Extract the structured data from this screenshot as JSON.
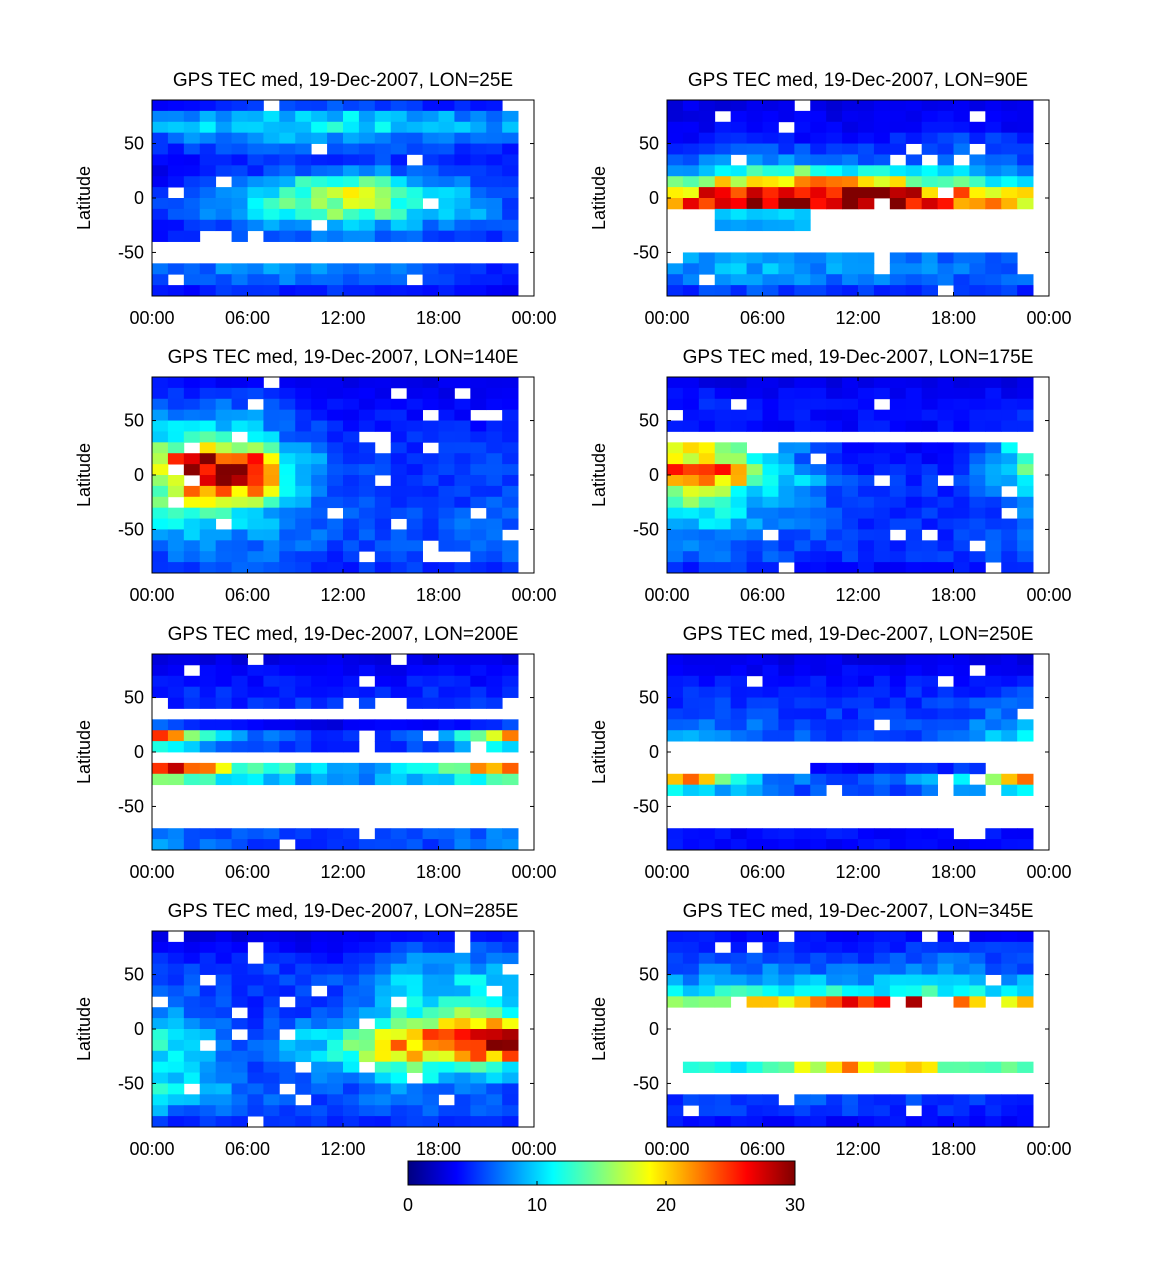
{
  "chart_data": {
    "type": "heatmap",
    "colorbar": {
      "colormap": "jet",
      "range": [
        0,
        30
      ],
      "ticks": [
        "0",
        "10",
        "20",
        "30"
      ]
    },
    "panels": [
      {
        "title": "GPS TEC med, 19-Dec-2007, LON=25E",
        "ylabel": "Latitude",
        "xticks": [
          "00:00",
          "06:00",
          "12:00",
          "18:00",
          "00:00"
        ],
        "yticks": [
          "50",
          "0",
          "-50"
        ],
        "xlim": [
          0,
          24
        ],
        "ylim": [
          -90,
          90
        ],
        "grid_rows_lat": [
          85,
          75,
          65,
          55,
          45,
          35,
          25,
          15,
          5,
          -5,
          -15,
          -25,
          -35,
          -45,
          -55,
          -65,
          -75,
          -85
        ],
        "profile_lat": [
          85,
          70,
          50,
          30,
          10,
          -10,
          -30,
          -50,
          -70,
          -85
        ],
        "profile_hours": [
          0,
          6,
          12,
          18,
          23
        ],
        "profile_values": [
          [
            3,
            5,
            6,
            5,
            4
          ],
          [
            10,
            12,
            12,
            10,
            9
          ],
          [
            5,
            7,
            7,
            6,
            5
          ],
          [
            3,
            4,
            5,
            5,
            4
          ],
          [
            4,
            9,
            18,
            9,
            5
          ],
          [
            5,
            10,
            17,
            12,
            6
          ],
          [
            4,
            6,
            7,
            6,
            5
          ],
          [
            null,
            null,
            null,
            null,
            null
          ],
          [
            6,
            8,
            8,
            6,
            4
          ],
          [
            4,
            5,
            5,
            4,
            4
          ]
        ]
      },
      {
        "title": "GPS TEC med, 19-Dec-2007, LON=90E",
        "ylabel": "Latitude",
        "xticks": [
          "00:00",
          "06:00",
          "12:00",
          "18:00",
          "00:00"
        ],
        "yticks": [
          "50",
          "0",
          "-50"
        ],
        "xlim": [
          0,
          24
        ],
        "ylim": [
          -90,
          90
        ],
        "grid_rows_lat": [
          85,
          75,
          65,
          55,
          45,
          35,
          25,
          15,
          5,
          -5,
          -15,
          -25,
          -35,
          -45,
          -55,
          -65,
          -75,
          -85
        ],
        "profile_lat": [
          85,
          70,
          50,
          30,
          15,
          5,
          -5,
          -15,
          -40,
          -70,
          -85
        ],
        "profile_hours": [
          0,
          6,
          12,
          18,
          23
        ],
        "profile_values": [
          [
            3,
            3,
            3,
            3,
            3
          ],
          [
            3,
            4,
            3,
            4,
            3
          ],
          [
            4,
            5,
            4,
            6,
            5
          ],
          [
            6,
            10,
            8,
            7,
            6
          ],
          [
            12,
            22,
            20,
            14,
            10
          ],
          [
            20,
            29,
            29,
            22,
            18
          ],
          [
            21,
            30,
            30,
            24,
            17
          ],
          [
            null,
            10,
            null,
            null,
            null
          ],
          [
            null,
            null,
            null,
            null,
            null
          ],
          [
            8,
            9,
            8,
            7,
            7
          ],
          [
            5,
            6,
            5,
            5,
            5
          ]
        ]
      },
      {
        "title": "GPS TEC med, 19-Dec-2007, LON=140E",
        "ylabel": "Latitude",
        "xticks": [
          "00:00",
          "06:00",
          "12:00",
          "18:00",
          "00:00"
        ],
        "yticks": [
          "50",
          "0",
          "-50"
        ],
        "xlim": [
          0,
          24
        ],
        "ylim": [
          -90,
          90
        ],
        "grid_rows_lat": [
          85,
          75,
          65,
          55,
          45,
          35,
          25,
          15,
          5,
          -5,
          -15,
          -25,
          -35,
          -45,
          -55,
          -65,
          -75,
          -85
        ],
        "profile_lat": [
          85,
          60,
          30,
          15,
          0,
          -15,
          -35,
          -55,
          -75,
          -85
        ],
        "profile_hours": [
          0,
          3,
          6,
          9,
          12,
          18,
          23
        ],
        "profile_values": [
          [
            4,
            4,
            4,
            3,
            3,
            3,
            3
          ],
          [
            6,
            7,
            7,
            5,
            4,
            4,
            4
          ],
          [
            12,
            14,
            12,
            7,
            5,
            5,
            5
          ],
          [
            16,
            27,
            25,
            10,
            6,
            5,
            6
          ],
          [
            16,
            28,
            29,
            11,
            6,
            5,
            6
          ],
          [
            14,
            22,
            22,
            10,
            6,
            5,
            6
          ],
          [
            11,
            12,
            11,
            8,
            6,
            6,
            7
          ],
          [
            8,
            9,
            8,
            7,
            6,
            6,
            7
          ],
          [
            6,
            7,
            7,
            6,
            5,
            6,
            6
          ],
          [
            5,
            6,
            6,
            5,
            5,
            5,
            5
          ]
        ]
      },
      {
        "title": "GPS TEC med, 19-Dec-2007, LON=175E",
        "ylabel": "Latitude",
        "xticks": [
          "00:00",
          "06:00",
          "12:00",
          "18:00",
          "00:00"
        ],
        "yticks": [
          "50",
          "0",
          "-50"
        ],
        "xlim": [
          0,
          24
        ],
        "ylim": [
          -90,
          90
        ],
        "grid_rows_lat": [
          85,
          75,
          65,
          55,
          45,
          35,
          25,
          15,
          5,
          -5,
          -15,
          -25,
          -35,
          -45,
          -55,
          -65,
          -75,
          -85
        ],
        "profile_lat": [
          85,
          70,
          50,
          35,
          15,
          0,
          -15,
          -35,
          -55,
          -75,
          -85
        ],
        "profile_hours": [
          0,
          3,
          6,
          12,
          18,
          21,
          23
        ],
        "profile_values": [
          [
            3,
            3,
            3,
            3,
            3,
            3,
            3
          ],
          [
            4,
            5,
            4,
            4,
            4,
            4,
            4
          ],
          [
            4,
            4,
            4,
            4,
            4,
            4,
            5
          ],
          [
            null,
            null,
            null,
            null,
            null,
            null,
            null
          ],
          [
            22,
            18,
            9,
            4,
            4,
            8,
            16
          ],
          [
            26,
            28,
            14,
            5,
            5,
            9,
            14
          ],
          [
            18,
            16,
            10,
            5,
            5,
            7,
            10
          ],
          [
            12,
            11,
            8,
            5,
            5,
            6,
            8
          ],
          [
            8,
            8,
            7,
            5,
            5,
            6,
            7
          ],
          [
            6,
            7,
            6,
            5,
            5,
            6,
            6
          ],
          [
            5,
            5,
            5,
            4,
            4,
            5,
            5
          ]
        ]
      },
      {
        "title": "GPS TEC med, 19-Dec-2007, LON=200E",
        "ylabel": "Latitude",
        "xticks": [
          "00:00",
          "06:00",
          "12:00",
          "18:00",
          "00:00"
        ],
        "yticks": [
          "50",
          "0",
          "-50"
        ],
        "xlim": [
          0,
          24
        ],
        "ylim": [
          -90,
          90
        ],
        "grid_rows_lat": [
          85,
          75,
          65,
          55,
          45,
          35,
          25,
          15,
          5,
          -5,
          -15,
          -25,
          -35,
          -45,
          -55,
          -65,
          -75,
          -85
        ],
        "profile_lat": [
          85,
          70,
          50,
          35,
          25,
          15,
          5,
          -5,
          -15,
          -25,
          -45,
          -65,
          -85
        ],
        "profile_hours": [
          0,
          6,
          12,
          18,
          23
        ],
        "profile_values": [
          [
            3,
            3,
            3,
            3,
            3
          ],
          [
            4,
            4,
            4,
            4,
            4
          ],
          [
            5,
            5,
            5,
            5,
            5
          ],
          [
            null,
            null,
            null,
            null,
            null
          ],
          [
            6,
            4,
            3,
            4,
            6
          ],
          [
            24,
            7,
            5,
            7,
            22
          ],
          [
            12,
            6,
            5,
            6,
            12
          ],
          [
            null,
            null,
            null,
            null,
            null
          ],
          [
            28,
            14,
            8,
            12,
            28
          ],
          [
            17,
            10,
            8,
            9,
            16
          ],
          [
            null,
            null,
            null,
            null,
            null
          ],
          [
            null,
            null,
            null,
            null,
            null
          ],
          [
            8,
            6,
            5,
            6,
            8
          ]
        ]
      },
      {
        "title": "GPS TEC med, 19-Dec-2007, LON=250E",
        "ylabel": "Latitude",
        "xticks": [
          "00:00",
          "06:00",
          "12:00",
          "18:00",
          "00:00"
        ],
        "yticks": [
          "50",
          "0",
          "-50"
        ],
        "xlim": [
          0,
          24
        ],
        "ylim": [
          -90,
          90
        ],
        "grid_rows_lat": [
          85,
          75,
          65,
          55,
          45,
          35,
          25,
          15,
          5,
          -5,
          -15,
          -25,
          -35,
          -45,
          -55,
          -65,
          -75,
          -85
        ],
        "profile_lat": [
          85,
          70,
          50,
          30,
          15,
          0,
          -15,
          -25,
          -35,
          -50,
          -85
        ],
        "profile_hours": [
          0,
          6,
          12,
          18,
          23
        ],
        "profile_values": [
          [
            3,
            3,
            3,
            3,
            3
          ],
          [
            4,
            4,
            4,
            4,
            4
          ],
          [
            5,
            5,
            5,
            5,
            6
          ],
          [
            6,
            6,
            5,
            6,
            8
          ],
          [
            10,
            7,
            5,
            7,
            12
          ],
          [
            null,
            null,
            null,
            null,
            null
          ],
          [
            null,
            null,
            4,
            5,
            null
          ],
          [
            24,
            8,
            5,
            10,
            26
          ],
          [
            12,
            7,
            5,
            7,
            10
          ],
          [
            null,
            null,
            null,
            null,
            null
          ],
          [
            4,
            4,
            4,
            4,
            4
          ]
        ]
      },
      {
        "title": "GPS TEC med, 19-Dec-2007, LON=285E",
        "ylabel": "Latitude",
        "xticks": [
          "00:00",
          "06:00",
          "12:00",
          "18:00",
          "00:00"
        ],
        "yticks": [
          "50",
          "0",
          "-50"
        ],
        "xlim": [
          0,
          24
        ],
        "ylim": [
          -90,
          90
        ],
        "grid_rows_lat": [
          85,
          75,
          65,
          55,
          45,
          35,
          25,
          15,
          5,
          -5,
          -15,
          -25,
          -35,
          -45,
          -55,
          -65,
          -75,
          -85
        ],
        "profile_lat": [
          85,
          70,
          50,
          30,
          10,
          -5,
          -20,
          -35,
          -55,
          -75,
          -85
        ],
        "profile_hours": [
          0,
          6,
          12,
          15,
          18,
          21,
          23
        ],
        "profile_values": [
          [
            3,
            3,
            3,
            4,
            4,
            4,
            4
          ],
          [
            4,
            4,
            4,
            6,
            7,
            7,
            6
          ],
          [
            6,
            6,
            6,
            9,
            10,
            10,
            8
          ],
          [
            7,
            5,
            5,
            9,
            10,
            10,
            9
          ],
          [
            9,
            5,
            7,
            12,
            15,
            16,
            13
          ],
          [
            12,
            6,
            11,
            18,
            24,
            26,
            27
          ],
          [
            12,
            6,
            12,
            20,
            25,
            28,
            28
          ],
          [
            11,
            6,
            9,
            13,
            14,
            12,
            10
          ],
          [
            12,
            7,
            6,
            8,
            7,
            6,
            6
          ],
          [
            8,
            6,
            5,
            6,
            6,
            6,
            6
          ],
          [
            5,
            5,
            5,
            5,
            5,
            5,
            5
          ]
        ]
      },
      {
        "title": "GPS TEC med, 19-Dec-2007, LON=345E",
        "ylabel": "Latitude",
        "xticks": [
          "00:00",
          "06:00",
          "12:00",
          "18:00",
          "00:00"
        ],
        "yticks": [
          "50",
          "0",
          "-50"
        ],
        "xlim": [
          0,
          24
        ],
        "ylim": [
          -90,
          90
        ],
        "grid_rows_lat": [
          85,
          75,
          65,
          55,
          45,
          35,
          25,
          15,
          5,
          -5,
          -15,
          -25,
          -35,
          -45,
          -55,
          -65,
          -75,
          -85
        ],
        "profile_lat": [
          85,
          70,
          50,
          35,
          25,
          15,
          0,
          -20,
          -40,
          -50,
          -70,
          -85
        ],
        "profile_hours": [
          0,
          6,
          12,
          18,
          23
        ],
        "profile_values": [
          [
            4,
            4,
            4,
            4,
            4
          ],
          [
            5,
            6,
            5,
            6,
            5
          ],
          [
            7,
            8,
            7,
            8,
            7
          ],
          [
            10,
            12,
            11,
            12,
            10
          ],
          [
            14,
            20,
            26,
            25,
            18
          ],
          [
            null,
            null,
            null,
            null,
            null
          ],
          [
            null,
            null,
            null,
            null,
            null
          ],
          [
            null,
            null,
            null,
            null,
            null
          ],
          [
            11,
            13,
            21,
            16,
            11
          ],
          [
            null,
            null,
            null,
            null,
            null
          ],
          [
            5,
            6,
            6,
            5,
            5
          ],
          [
            4,
            4,
            4,
            4,
            4
          ]
        ]
      }
    ]
  }
}
